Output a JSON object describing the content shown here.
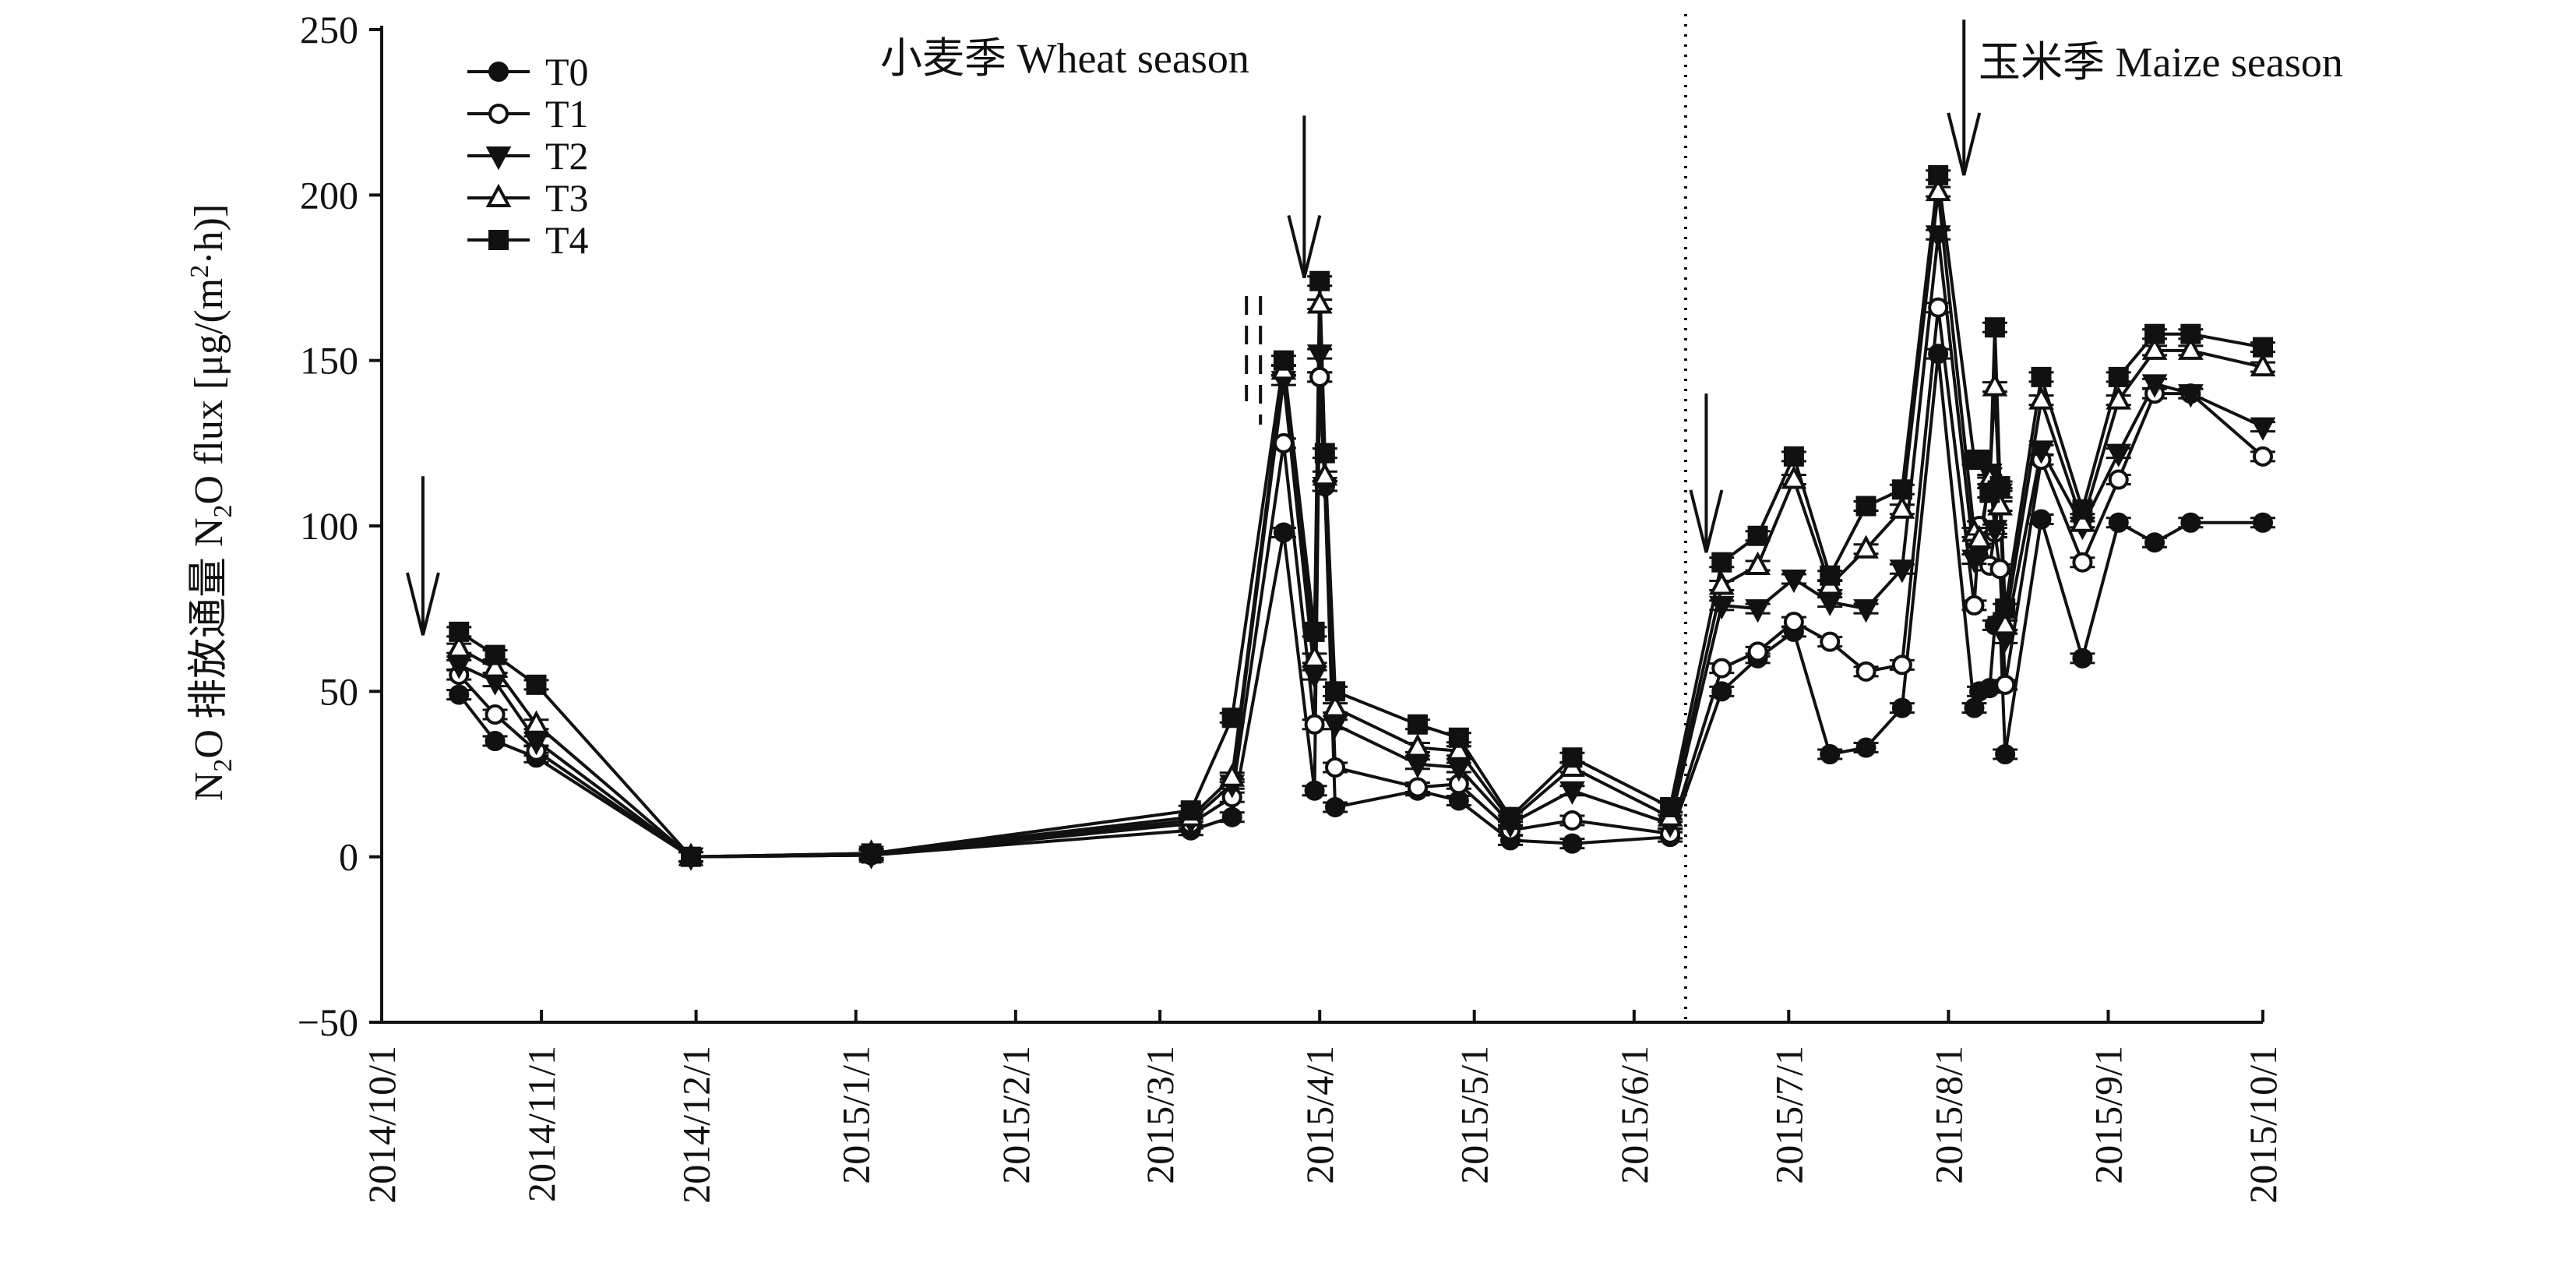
{
  "chart_data": {
    "type": "line",
    "title": "",
    "ylabel": {
      "prefix": "N",
      "prefix_sub": "2",
      "mid": "O 排放通量 N",
      "mid_sub": "2",
      "suffix_pre": "O flux [μg/(m",
      "suffix_sup": "2",
      "suffix_post": "·h)]"
    },
    "xlabel": "",
    "ylim": [
      -50,
      250
    ],
    "yticks": [
      -50,
      0,
      50,
      100,
      150,
      200,
      250
    ],
    "ytick_labels": [
      "−50",
      "0",
      "50",
      "100",
      "150",
      "200",
      "250"
    ],
    "xlim": [
      "2014-10-01",
      "2015-10-01"
    ],
    "xticks": [
      "2014-10-01",
      "2014-11-01",
      "2014-12-01",
      "2015-01-01",
      "2015-02-01",
      "2015-03-01",
      "2015-04-01",
      "2015-05-01",
      "2015-06-01",
      "2015-07-01",
      "2015-08-01",
      "2015-09-01",
      "2015-10-01"
    ],
    "xtick_labels": [
      "2014/10/1",
      "2014/11/1",
      "2014/12/1",
      "2015/1/1",
      "2015/2/1",
      "2015/3/1",
      "2015/4/1",
      "2015/5/1",
      "2015/6/1",
      "2015/7/1",
      "2015/8/1",
      "2015/9/1",
      "2015/10/1"
    ],
    "legend_position": "top-left",
    "grid": false,
    "annotations": [
      {
        "text": "小麦季 Wheat season"
      },
      {
        "text": "玉米季 Maize season"
      }
    ],
    "season_divider_date": "2015-06-11",
    "fertilization_arrows": [
      {
        "date": "2014-10-09",
        "from": 115,
        "to": 67
      },
      {
        "date": "2015-03-29",
        "from": 224,
        "to": 175
      },
      {
        "date": "2015-06-15",
        "from": 140,
        "to": 92
      },
      {
        "date": "2015-08-04",
        "from": 253,
        "to": 206
      }
    ],
    "dashed_markers_date": "2015-03-19",
    "series": [
      {
        "name": "T0",
        "marker": "filled-circle",
        "x": [
          "2014-10-16",
          "2014-10-23",
          "2014-10-31",
          "2014-11-30",
          "2015-01-04",
          "2015-03-07",
          "2015-03-15",
          "2015-03-25",
          "2015-03-31",
          "2015-04-01",
          "2015-04-02",
          "2015-04-04",
          "2015-04-20",
          "2015-04-28",
          "2015-05-08",
          "2015-05-20",
          "2015-06-08",
          "2015-06-18",
          "2015-06-25",
          "2015-07-02",
          "2015-07-09",
          "2015-07-16",
          "2015-07-23",
          "2015-07-30",
          "2015-08-06",
          "2015-08-07",
          "2015-08-09",
          "2015-08-10",
          "2015-08-11",
          "2015-08-12",
          "2015-08-19",
          "2015-08-27",
          "2015-09-03",
          "2015-09-10",
          "2015-09-17",
          "2015-10-01"
        ],
        "values": [
          49,
          35,
          30,
          0,
          0.5,
          8,
          12,
          98,
          20,
          145,
          112,
          15,
          20,
          17,
          5,
          4,
          6,
          50,
          60,
          68,
          31,
          33,
          45,
          152,
          45,
          50,
          51,
          70,
          71,
          31,
          102,
          60,
          101,
          95,
          101,
          101
        ]
      },
      {
        "name": "T1",
        "marker": "open-circle",
        "x": [
          "2014-10-16",
          "2014-10-23",
          "2014-10-31",
          "2014-11-30",
          "2015-01-04",
          "2015-03-07",
          "2015-03-15",
          "2015-03-25",
          "2015-03-31",
          "2015-04-01",
          "2015-04-02",
          "2015-04-04",
          "2015-04-20",
          "2015-04-28",
          "2015-05-08",
          "2015-05-20",
          "2015-06-08",
          "2015-06-18",
          "2015-06-25",
          "2015-07-02",
          "2015-07-09",
          "2015-07-16",
          "2015-07-23",
          "2015-07-30",
          "2015-08-06",
          "2015-08-07",
          "2015-08-09",
          "2015-08-10",
          "2015-08-11",
          "2015-08-12",
          "2015-08-19",
          "2015-08-27",
          "2015-09-03",
          "2015-09-10",
          "2015-09-17",
          "2015-10-01"
        ],
        "values": [
          55,
          43,
          32,
          0,
          0.5,
          10,
          18,
          125,
          40,
          145,
          112,
          27,
          21,
          22,
          8,
          11,
          7,
          57,
          62,
          71,
          65,
          56,
          58,
          166,
          76,
          100,
          88,
          98,
          87,
          52,
          120,
          89,
          114,
          140,
          140,
          121
        ]
      },
      {
        "name": "T2",
        "marker": "filled-triangle-down",
        "x": [
          "2014-10-16",
          "2014-10-23",
          "2014-10-31",
          "2014-11-30",
          "2015-01-04",
          "2015-03-07",
          "2015-03-15",
          "2015-03-25",
          "2015-03-31",
          "2015-04-01",
          "2015-04-02",
          "2015-04-04",
          "2015-04-20",
          "2015-04-28",
          "2015-05-08",
          "2015-05-20",
          "2015-06-08",
          "2015-06-18",
          "2015-06-25",
          "2015-07-02",
          "2015-07-09",
          "2015-07-16",
          "2015-07-23",
          "2015-07-30",
          "2015-08-06",
          "2015-08-07",
          "2015-08-09",
          "2015-08-10",
          "2015-08-11",
          "2015-08-12",
          "2015-08-19",
          "2015-08-27",
          "2015-09-03",
          "2015-09-10",
          "2015-09-17",
          "2015-10-01"
        ],
        "values": [
          58,
          53,
          35,
          0,
          0.5,
          11,
          22,
          144,
          55,
          152,
          112,
          40,
          28,
          27,
          10,
          20,
          10,
          76,
          75,
          84,
          77,
          75,
          87,
          188,
          90,
          92,
          116,
          99,
          110,
          66,
          123,
          100,
          122,
          143,
          140,
          130
        ]
      },
      {
        "name": "T3",
        "marker": "open-triangle-up",
        "x": [
          "2014-10-16",
          "2014-10-23",
          "2014-10-31",
          "2014-11-30",
          "2015-01-04",
          "2015-03-07",
          "2015-03-15",
          "2015-03-25",
          "2015-03-31",
          "2015-04-01",
          "2015-04-02",
          "2015-04-04",
          "2015-04-20",
          "2015-04-28",
          "2015-05-08",
          "2015-05-20",
          "2015-06-08",
          "2015-06-18",
          "2015-06-25",
          "2015-07-02",
          "2015-07-09",
          "2015-07-16",
          "2015-07-23",
          "2015-07-30",
          "2015-08-06",
          "2015-08-07",
          "2015-08-09",
          "2015-08-10",
          "2015-08-11",
          "2015-08-12",
          "2015-08-19",
          "2015-08-27",
          "2015-09-03",
          "2015-09-10",
          "2015-09-17",
          "2015-10-01"
        ],
        "values": [
          63,
          57,
          40,
          0,
          1,
          12,
          24,
          147,
          60,
          167,
          115,
          45,
          33,
          32,
          11,
          27,
          12,
          82,
          88,
          114,
          82,
          93,
          105,
          201,
          98,
          96,
          114,
          142,
          106,
          70,
          138,
          101,
          138,
          153,
          153,
          148
        ]
      },
      {
        "name": "T4",
        "marker": "filled-square",
        "x": [
          "2014-10-16",
          "2014-10-23",
          "2014-10-31",
          "2014-11-30",
          "2015-01-04",
          "2015-03-07",
          "2015-03-15",
          "2015-03-25",
          "2015-03-31",
          "2015-04-01",
          "2015-04-02",
          "2015-04-04",
          "2015-04-20",
          "2015-04-28",
          "2015-05-08",
          "2015-05-20",
          "2015-06-08",
          "2015-06-18",
          "2015-06-25",
          "2015-07-02",
          "2015-07-09",
          "2015-07-16",
          "2015-07-23",
          "2015-07-30",
          "2015-08-06",
          "2015-08-07",
          "2015-08-09",
          "2015-08-10",
          "2015-08-11",
          "2015-08-12",
          "2015-08-19",
          "2015-08-27",
          "2015-09-03",
          "2015-09-10",
          "2015-09-17",
          "2015-10-01"
        ],
        "values": [
          68,
          61,
          52,
          0,
          1,
          14,
          42,
          150,
          68,
          174,
          122,
          50,
          40,
          36,
          12,
          30,
          15,
          89,
          97,
          121,
          85,
          106,
          111,
          206,
          120,
          120,
          110,
          160,
          112,
          75,
          145,
          105,
          145,
          158,
          158,
          154
        ]
      }
    ]
  }
}
